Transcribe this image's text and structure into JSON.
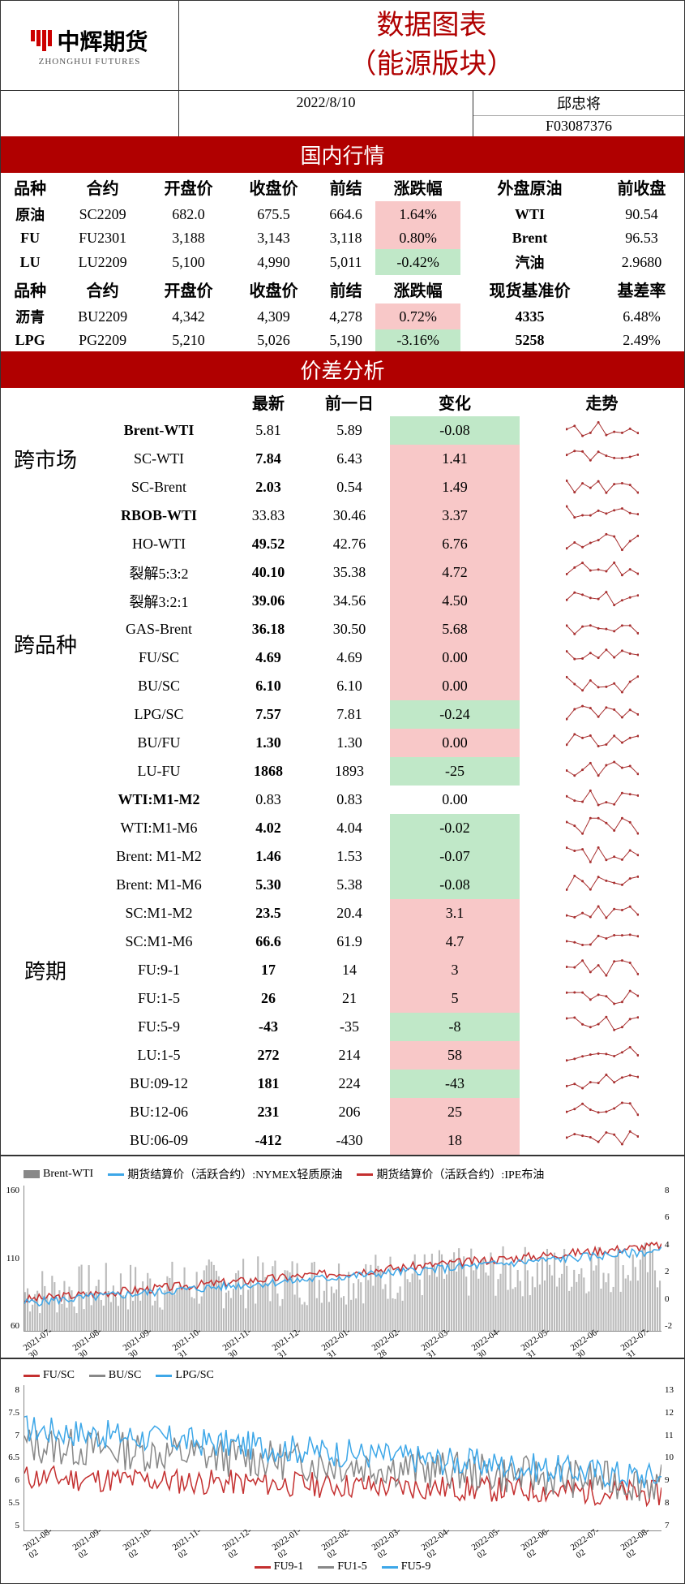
{
  "header": {
    "logo_main": "中辉期货",
    "logo_sub": "ZHONGHUI FUTURES",
    "title_line1": "数据图表",
    "title_line2": "（能源版块）",
    "date": "2022/8/10",
    "author": "邱忠将",
    "author_id": "F03087376"
  },
  "banners": {
    "domestic": "国内行情",
    "spread": "价差分析"
  },
  "domestic": {
    "hdr1": [
      "品种",
      "合约",
      "开盘价",
      "收盘价",
      "前结",
      "涨跌幅",
      "外盘原油",
      "前收盘"
    ],
    "rows1": [
      {
        "c": [
          "原油",
          "SC2209",
          "682.0",
          "675.5",
          "664.6",
          "1.64%",
          "WTI",
          "90.54"
        ],
        "chg": "pos"
      },
      {
        "c": [
          "FU",
          "FU2301",
          "3,188",
          "3,143",
          "3,118",
          "0.80%",
          "Brent",
          "96.53"
        ],
        "chg": "pos"
      },
      {
        "c": [
          "LU",
          "LU2209",
          "5,100",
          "4,990",
          "5,011",
          "-0.42%",
          "汽油",
          "2.9680"
        ],
        "chg": "neg"
      }
    ],
    "hdr2": [
      "品种",
      "合约",
      "开盘价",
      "收盘价",
      "前结",
      "涨跌幅",
      "现货基准价",
      "基差率"
    ],
    "rows2": [
      {
        "c": [
          "沥青",
          "BU2209",
          "4,342",
          "4,309",
          "4,278",
          "0.72%",
          "4335",
          "6.48%"
        ],
        "chg": "pos"
      },
      {
        "c": [
          "LPG",
          "PG2209",
          "5,210",
          "5,026",
          "5,190",
          "-3.16%",
          "5258",
          "2.49%"
        ],
        "chg": "neg"
      }
    ]
  },
  "spread": {
    "hdr": [
      "",
      "",
      "最新",
      "前一日",
      "变化",
      "走势"
    ],
    "groups": [
      {
        "label": "跨市场",
        "rowspan": 3,
        "rows": [
          {
            "n": "Brent-WTI",
            "a": "5.81",
            "b": "5.89",
            "d": "-0.08",
            "cls": "neg",
            "seed": 1
          },
          {
            "n": "SC-WTI",
            "a": "7.84",
            "b": "6.43",
            "d": "1.41",
            "cls": "pos",
            "seed": 2
          },
          {
            "n": "SC-Brent",
            "a": "2.03",
            "b": "0.54",
            "d": "1.49",
            "cls": "pos",
            "seed": 3
          }
        ]
      },
      {
        "label": "跨品种",
        "rowspan": 10,
        "rows": [
          {
            "n": "RBOB-WTI",
            "a": "33.83",
            "b": "30.46",
            "d": "3.37",
            "cls": "pos",
            "seed": 4
          },
          {
            "n": "HO-WTI",
            "a": "49.52",
            "b": "42.76",
            "d": "6.76",
            "cls": "pos",
            "seed": 5
          },
          {
            "n": "裂解5:3:2",
            "a": "40.10",
            "b": "35.38",
            "d": "4.72",
            "cls": "pos",
            "seed": 6
          },
          {
            "n": "裂解3:2:1",
            "a": "39.06",
            "b": "34.56",
            "d": "4.50",
            "cls": "pos",
            "seed": 7
          },
          {
            "n": "GAS-Brent",
            "a": "36.18",
            "b": "30.50",
            "d": "5.68",
            "cls": "pos",
            "seed": 8
          },
          {
            "n": "FU/SC",
            "a": "4.69",
            "b": "4.69",
            "d": "0.00",
            "cls": "pos",
            "seed": 9
          },
          {
            "n": "BU/SC",
            "a": "6.10",
            "b": "6.10",
            "d": "0.00",
            "cls": "pos",
            "seed": 10
          },
          {
            "n": "LPG/SC",
            "a": "7.57",
            "b": "7.81",
            "d": "-0.24",
            "cls": "neg",
            "seed": 11
          },
          {
            "n": "BU/FU",
            "a": "1.30",
            "b": "1.30",
            "d": "0.00",
            "cls": "pos",
            "seed": 12
          },
          {
            "n": "LU-FU",
            "a": "1868",
            "b": "1893",
            "d": "-25",
            "cls": "neg",
            "seed": 13
          }
        ]
      },
      {
        "label": "跨期",
        "rowspan": 13,
        "rows": [
          {
            "n": "WTI:M1-M2",
            "a": "0.83",
            "b": "0.83",
            "d": "0.00",
            "cls": "",
            "seed": 14
          },
          {
            "n": "WTI:M1-M6",
            "a": "4.02",
            "b": "4.04",
            "d": "-0.02",
            "cls": "neg",
            "seed": 15
          },
          {
            "n": "Brent: M1-M2",
            "a": "1.46",
            "b": "1.53",
            "d": "-0.07",
            "cls": "neg",
            "seed": 16
          },
          {
            "n": "Brent: M1-M6",
            "a": "5.30",
            "b": "5.38",
            "d": "-0.08",
            "cls": "neg",
            "seed": 17
          },
          {
            "n": "SC:M1-M2",
            "a": "23.5",
            "b": "20.4",
            "d": "3.1",
            "cls": "pos",
            "seed": 18
          },
          {
            "n": "SC:M1-M6",
            "a": "66.6",
            "b": "61.9",
            "d": "4.7",
            "cls": "pos",
            "seed": 19
          },
          {
            "n": "FU:9-1",
            "a": "17",
            "b": "14",
            "d": "3",
            "cls": "pos",
            "seed": 20
          },
          {
            "n": "FU:1-5",
            "a": "26",
            "b": "21",
            "d": "5",
            "cls": "pos",
            "seed": 21
          },
          {
            "n": "FU:5-9",
            "a": "-43",
            "b": "-35",
            "d": "-8",
            "cls": "neg",
            "seed": 22
          },
          {
            "n": "LU:1-5",
            "a": "272",
            "b": "214",
            "d": "58",
            "cls": "pos",
            "seed": 23
          },
          {
            "n": "BU:09-12",
            "a": "181",
            "b": "224",
            "d": "-43",
            "cls": "neg",
            "seed": 24
          },
          {
            "n": "BU:12-06",
            "a": "231",
            "b": "206",
            "d": "25",
            "cls": "pos",
            "seed": 25
          },
          {
            "n": "BU:06-09",
            "a": "-412",
            "b": "-430",
            "d": "18",
            "cls": "pos",
            "seed": 26
          }
        ]
      }
    ]
  },
  "chart1": {
    "legend": [
      {
        "label": "Brent-WTI",
        "color": "#888",
        "type": "bar"
      },
      {
        "label": "期货结算价（活跃合约）:NYMEX轻质原油",
        "color": "#3da7e8",
        "type": "line"
      },
      {
        "label": "期货结算价（活跃合约）:IPE布油",
        "color": "#c43030",
        "type": "line"
      }
    ],
    "yleft": [
      160,
      110,
      60
    ],
    "yright": [
      8,
      6,
      4,
      2,
      0,
      -2
    ],
    "xaxis": [
      "2021-07-30",
      "2021-08-30",
      "2021-09-30",
      "2021-10-31",
      "2021-11-30",
      "2021-12-31",
      "2022-01-31",
      "2022-02-28",
      "2022-03-31",
      "2022-04-30",
      "2022-05-31",
      "2022-06-30",
      "2022-07-31"
    ]
  },
  "chart2": {
    "legend": [
      {
        "label": "FU/SC",
        "color": "#c43030"
      },
      {
        "label": "BU/SC",
        "color": "#888"
      },
      {
        "label": "LPG/SC",
        "color": "#3da7e8"
      }
    ],
    "yleft": [
      8,
      7.5,
      7,
      6.5,
      6,
      5.5,
      5
    ],
    "yright": [
      13,
      12,
      11,
      10,
      9,
      8,
      7
    ],
    "xaxis": [
      "2021-08-02",
      "2021-09-02",
      "2021-10-02",
      "2021-11-02",
      "2021-12-02",
      "2022-01-02",
      "2022-02-02",
      "2022-03-02",
      "2022-04-02",
      "2022-05-02",
      "2022-06-02",
      "2022-07-02",
      "2022-08-02"
    ]
  },
  "chart3": {
    "legend": [
      {
        "label": "FU9-1",
        "color": "#c43030"
      },
      {
        "label": "FU1-5",
        "color": "#888"
      },
      {
        "label": "FU5-9",
        "color": "#3da7e8"
      }
    ]
  },
  "colors": {
    "banner_bg": "#b00000",
    "pos_bg": "#f8c8c8",
    "neg_bg": "#c0e8c8",
    "spark": "#a83030"
  }
}
